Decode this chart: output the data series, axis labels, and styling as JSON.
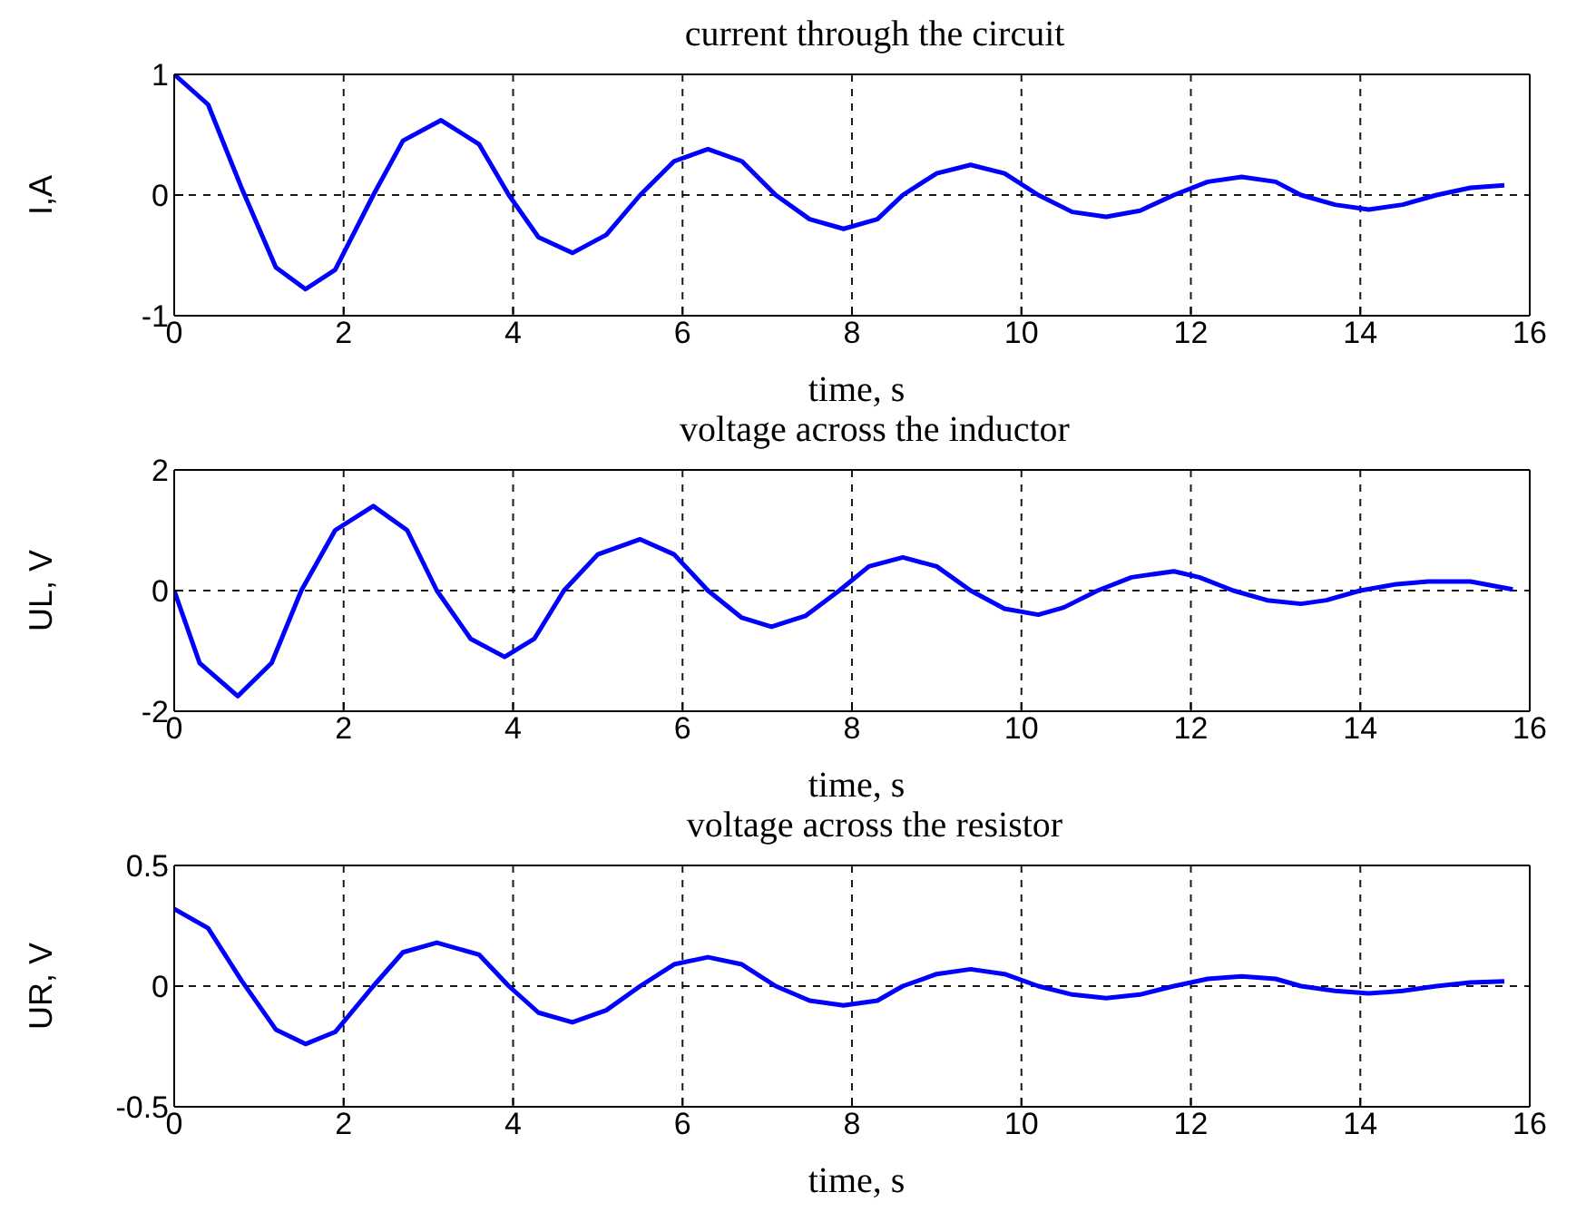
{
  "chart_data": [
    {
      "type": "line",
      "title": "current through the circuit",
      "xlabel": "time, s",
      "ylabel": "I,A",
      "xlim": [
        0,
        16
      ],
      "xticks": [
        0,
        2,
        4,
        6,
        8,
        10,
        12,
        14,
        16
      ],
      "ylim": [
        -1,
        1
      ],
      "yticks": [
        -1,
        0,
        1
      ],
      "grid": true,
      "line_style": "solid",
      "marker": "none",
      "series": [
        {
          "color": "#0000ff",
          "x": [
            0,
            0.4,
            0.8,
            1.2,
            1.55,
            1.9,
            2.35,
            2.7,
            3.15,
            3.6,
            3.95,
            4.3,
            4.7,
            5.1,
            5.5,
            5.9,
            6.3,
            6.7,
            7.1,
            7.5,
            7.9,
            8.3,
            8.6,
            9.0,
            9.4,
            9.8,
            10.2,
            10.6,
            11.0,
            11.4,
            11.8,
            12.2,
            12.6,
            13.0,
            13.3,
            13.7,
            14.1,
            14.5,
            14.9,
            15.3,
            15.7
          ],
          "values": [
            1,
            0.75,
            0.05,
            -0.6,
            -0.78,
            -0.62,
            0,
            0.45,
            0.62,
            0.42,
            0,
            -0.35,
            -0.48,
            -0.33,
            0,
            0.28,
            0.38,
            0.28,
            0,
            -0.2,
            -0.28,
            -0.2,
            0,
            0.18,
            0.25,
            0.18,
            0,
            -0.14,
            -0.18,
            -0.13,
            0,
            0.11,
            0.15,
            0.11,
            0,
            -0.08,
            -0.12,
            -0.08,
            0,
            0.06,
            0.08
          ]
        }
      ]
    },
    {
      "type": "line",
      "title": "voltage across the inductor",
      "xlabel": "time, s",
      "ylabel": "UL, V",
      "xlim": [
        0,
        16
      ],
      "xticks": [
        0,
        2,
        4,
        6,
        8,
        10,
        12,
        14,
        16
      ],
      "ylim": [
        -2,
        2
      ],
      "yticks": [
        -2,
        0,
        2
      ],
      "grid": true,
      "line_style": "solid",
      "marker": "none",
      "series": [
        {
          "color": "#0000ff",
          "x": [
            0,
            0.3,
            0.75,
            1.15,
            1.5,
            1.9,
            2.35,
            2.75,
            3.1,
            3.5,
            3.9,
            4.25,
            4.6,
            5.0,
            5.5,
            5.9,
            6.3,
            6.7,
            7.05,
            7.45,
            7.85,
            8.2,
            8.6,
            9.0,
            9.4,
            9.8,
            10.2,
            10.5,
            10.9,
            11.3,
            11.8,
            12.1,
            12.5,
            12.9,
            13.3,
            13.6,
            14.0,
            14.4,
            14.8,
            15.3,
            15.8
          ],
          "values": [
            0,
            -1.2,
            -1.75,
            -1.2,
            0,
            1.0,
            1.4,
            1.0,
            0,
            -0.8,
            -1.1,
            -0.8,
            0,
            0.6,
            0.85,
            0.6,
            0,
            -0.45,
            -0.6,
            -0.42,
            0,
            0.4,
            0.55,
            0.4,
            0,
            -0.3,
            -0.4,
            -0.28,
            0,
            0.22,
            0.32,
            0.22,
            0,
            -0.16,
            -0.22,
            -0.16,
            0,
            0.1,
            0.15,
            0.15,
            0.02
          ]
        }
      ]
    },
    {
      "type": "line",
      "title": "voltage across the resistor",
      "xlabel": "time, s",
      "ylabel": "UR, V",
      "xlim": [
        0,
        16
      ],
      "xticks": [
        0,
        2,
        4,
        6,
        8,
        10,
        12,
        14,
        16
      ],
      "ylim": [
        -0.5,
        0.5
      ],
      "yticks": [
        -0.5,
        0,
        0.5
      ],
      "grid": true,
      "line_style": "solid",
      "marker": "none",
      "series": [
        {
          "color": "#0000ff",
          "x": [
            0,
            0.4,
            0.8,
            1.2,
            1.55,
            1.9,
            2.35,
            2.7,
            3.1,
            3.6,
            3.95,
            4.3,
            4.7,
            5.1,
            5.5,
            5.9,
            6.3,
            6.7,
            7.1,
            7.5,
            7.9,
            8.3,
            8.6,
            9.0,
            9.4,
            9.8,
            10.2,
            10.6,
            11.0,
            11.4,
            11.8,
            12.2,
            12.6,
            13.0,
            13.3,
            13.7,
            14.1,
            14.5,
            14.9,
            15.3,
            15.7
          ],
          "values": [
            0.32,
            0.24,
            0.02,
            -0.18,
            -0.24,
            -0.19,
            0,
            0.14,
            0.18,
            0.13,
            0,
            -0.11,
            -0.15,
            -0.1,
            0,
            0.09,
            0.12,
            0.09,
            0,
            -0.06,
            -0.08,
            -0.06,
            0,
            0.05,
            0.07,
            0.05,
            0,
            -0.035,
            -0.05,
            -0.035,
            0,
            0.03,
            0.04,
            0.03,
            0,
            -0.02,
            -0.03,
            -0.02,
            0,
            0.015,
            0.02
          ]
        }
      ]
    }
  ]
}
